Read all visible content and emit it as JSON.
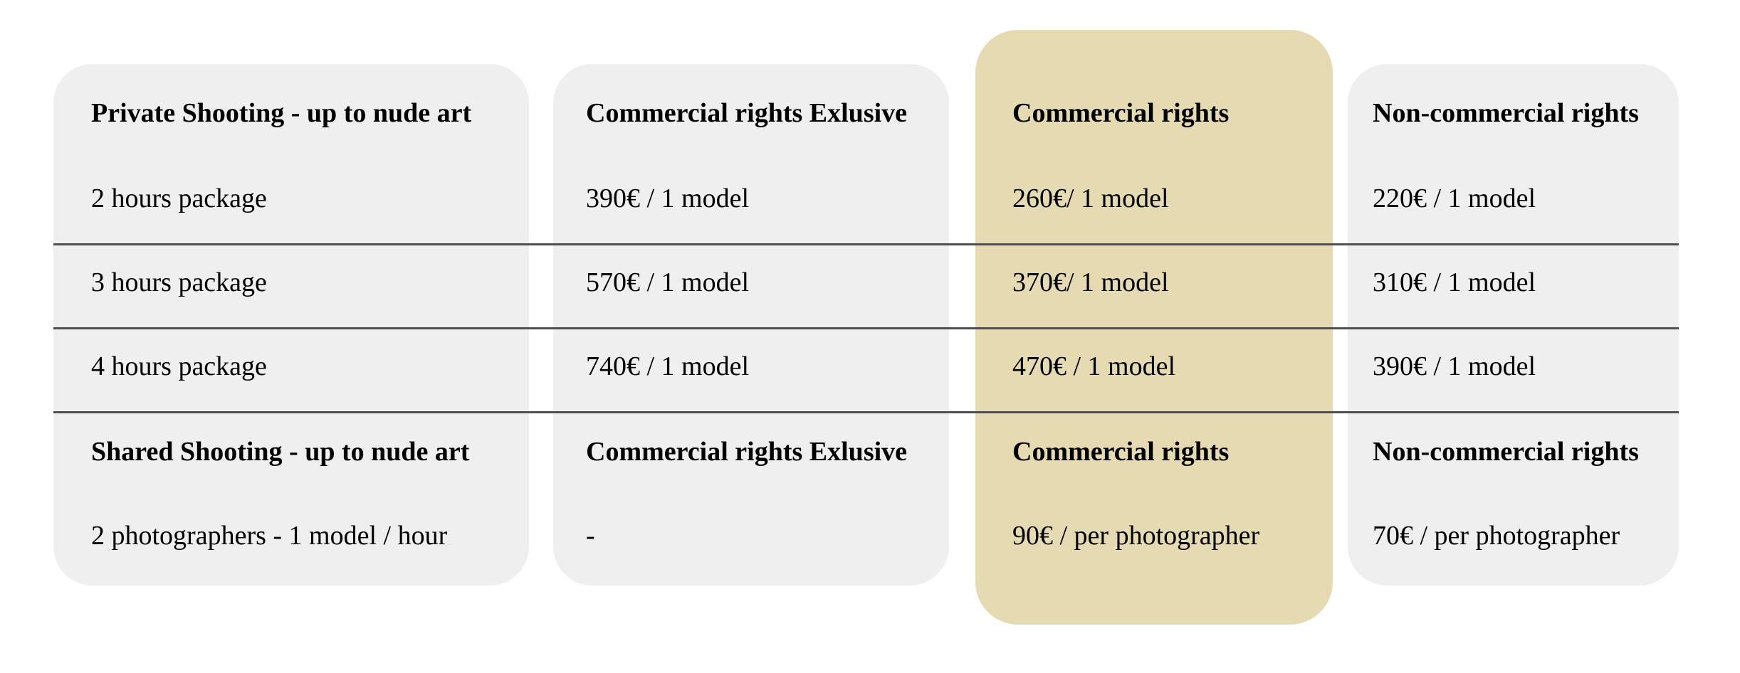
{
  "colors": {
    "page_background": "#ffffff",
    "card_background": "#efefef",
    "highlight_card_background": "#e5dab2",
    "separator": "#4f4f4f",
    "text": "#000000"
  },
  "table": {
    "columns": [
      {
        "name": "shooting-packages",
        "highlighted": false,
        "cells": [
          "Private Shooting - up to nude art",
          "2 hours package",
          "3 hours package",
          "4 hours package",
          "Shared Shooting - up to nude art",
          "2 photographers - 1 model / hour"
        ]
      },
      {
        "name": "commercial-rights-exclusive",
        "highlighted": false,
        "cells": [
          "Commercial rights Exlusive",
          "390€ / 1 model",
          "570€ / 1 model",
          "740€ / 1 model",
          "Commercial rights Exlusive",
          "-"
        ]
      },
      {
        "name": "commercial-rights",
        "highlighted": true,
        "cells": [
          "Commercial rights",
          "260€/ 1 model",
          "370€/ 1 model",
          "470€ / 1 model",
          "Commercial rights",
          "90€ / per photographer"
        ]
      },
      {
        "name": "non-commercial-rights",
        "highlighted": false,
        "cells": [
          "Non-commercial rights",
          "220€ / 1 model",
          "310€ / 1 model",
          "390€ / 1 model",
          "Non-commercial rights",
          "70€ / per photographer"
        ]
      }
    ]
  }
}
